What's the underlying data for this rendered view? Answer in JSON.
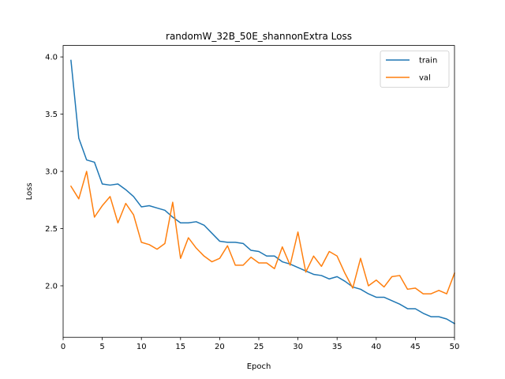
{
  "chart_data": {
    "type": "line",
    "title": "randomW_32B_50E_shannonExtra Loss",
    "xlabel": "Epoch",
    "ylabel": "Loss",
    "xlim": [
      0,
      50
    ],
    "ylim": [
      1.55,
      4.1
    ],
    "xticks": [
      0,
      5,
      10,
      15,
      20,
      25,
      30,
      35,
      40,
      45,
      50
    ],
    "yticks": [
      2.0,
      2.5,
      3.0,
      3.5,
      4.0
    ],
    "ytick_labels": [
      "2.0",
      "2.5",
      "3.0",
      "3.5",
      "4.0"
    ],
    "grid": false,
    "legend_position": "top-right",
    "x": [
      1,
      2,
      3,
      4,
      5,
      6,
      7,
      8,
      9,
      10,
      11,
      12,
      13,
      14,
      15,
      16,
      17,
      18,
      19,
      20,
      21,
      22,
      23,
      24,
      25,
      26,
      27,
      28,
      29,
      30,
      31,
      32,
      33,
      34,
      35,
      36,
      37,
      38,
      39,
      40,
      41,
      42,
      43,
      44,
      45,
      46,
      47,
      48,
      49,
      50
    ],
    "series": [
      {
        "name": "train",
        "color": "#1f77b4",
        "values": [
          3.97,
          3.29,
          3.1,
          3.08,
          2.89,
          2.88,
          2.89,
          2.84,
          2.78,
          2.69,
          2.7,
          2.68,
          2.66,
          2.6,
          2.55,
          2.55,
          2.56,
          2.53,
          2.46,
          2.39,
          2.38,
          2.38,
          2.37,
          2.31,
          2.3,
          2.26,
          2.26,
          2.21,
          2.19,
          2.16,
          2.13,
          2.1,
          2.09,
          2.06,
          2.08,
          2.04,
          1.99,
          1.97,
          1.93,
          1.9,
          1.9,
          1.87,
          1.84,
          1.8,
          1.8,
          1.76,
          1.73,
          1.73,
          1.71,
          1.67
        ]
      },
      {
        "name": "val",
        "color": "#ff7f0e",
        "values": [
          2.87,
          2.76,
          3.0,
          2.6,
          2.7,
          2.78,
          2.55,
          2.72,
          2.62,
          2.38,
          2.36,
          2.32,
          2.37,
          2.73,
          2.24,
          2.42,
          2.33,
          2.26,
          2.21,
          2.24,
          2.35,
          2.18,
          2.18,
          2.25,
          2.2,
          2.2,
          2.15,
          2.34,
          2.18,
          2.47,
          2.12,
          2.26,
          2.17,
          2.3,
          2.26,
          2.11,
          1.98,
          2.24,
          2.0,
          2.05,
          1.99,
          2.08,
          2.09,
          1.97,
          1.98,
          1.93,
          1.93,
          1.96,
          1.93,
          2.11
        ]
      }
    ]
  }
}
